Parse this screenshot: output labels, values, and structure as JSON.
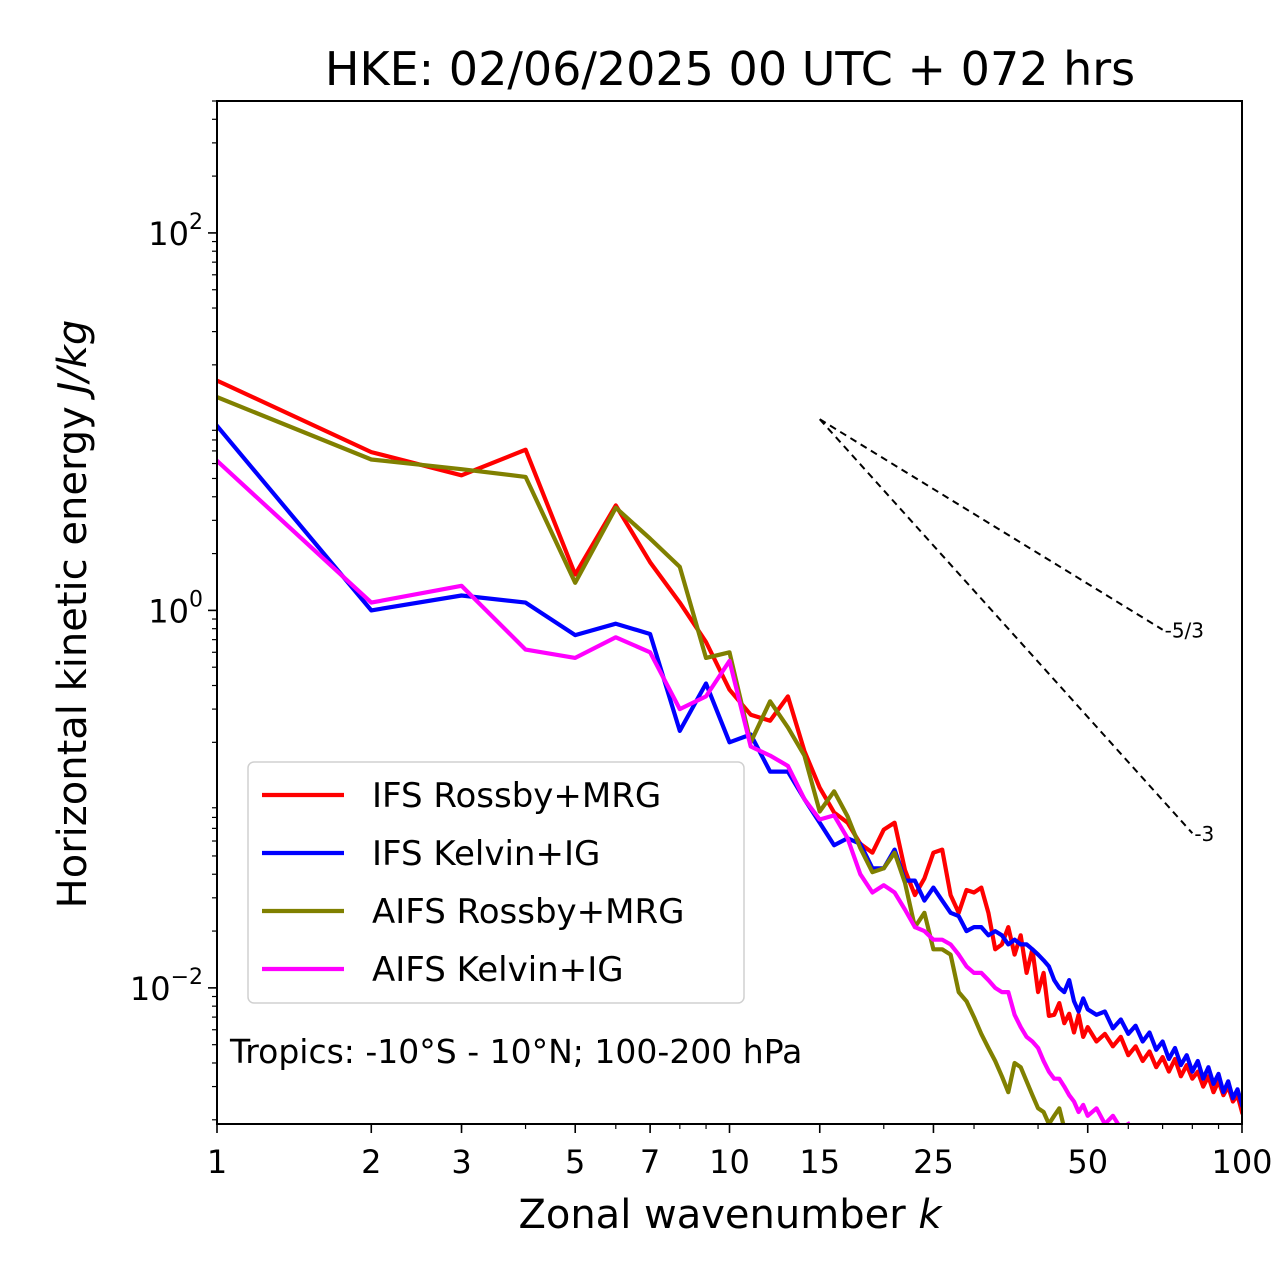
{
  "chart_data": {
    "type": "line",
    "title": "HKE: 02/06/2025 00 UTC + 072 hrs",
    "xlabel": "Zonal wavenumber ",
    "xlabel_var": "k",
    "ylabel": "Horizontal kinetic energy ",
    "ylabel_unit": "J/kg",
    "x_scale": "log",
    "y_scale": "log",
    "xlim": [
      1,
      100
    ],
    "ylim": [
      0.0019,
      500
    ],
    "x_ticks": [
      {
        "value": 1,
        "label": "1"
      },
      {
        "value": 2,
        "label": "2"
      },
      {
        "value": 3,
        "label": "3"
      },
      {
        "value": 5,
        "label": "5"
      },
      {
        "value": 7,
        "label": "7"
      },
      {
        "value": 10,
        "label": "10"
      },
      {
        "value": 15,
        "label": "15"
      },
      {
        "value": 25,
        "label": "25"
      },
      {
        "value": 50,
        "label": "50"
      },
      {
        "value": 100,
        "label": "100"
      }
    ],
    "y_ticks": [
      {
        "value": 100,
        "base": "10",
        "exp": "2"
      },
      {
        "value": 1,
        "base": "10",
        "exp": "0"
      },
      {
        "value": 0.01,
        "base": "10",
        "exp": "−2"
      }
    ],
    "legend_position": "lower-left",
    "annotation": "Tropics: -10°S - 10°N; 100-200 hPa",
    "reference_lines": [
      {
        "label": "-5/3",
        "x": [
          15,
          70
        ],
        "y": [
          10.3,
          0.79
        ]
      },
      {
        "label": "-3",
        "x": [
          15,
          80
        ],
        "y": [
          10.3,
          0.066
        ]
      }
    ],
    "series": [
      {
        "name": "IFS Rossby+MRG",
        "color": "#ff0000",
        "x": [
          1,
          2,
          3,
          4,
          5,
          6,
          7,
          8,
          9,
          10,
          11,
          12,
          13,
          14,
          15,
          16,
          17,
          18,
          19,
          20,
          21,
          22,
          23,
          24,
          25,
          26,
          27,
          28,
          29,
          30,
          31,
          32,
          33,
          34,
          35,
          36,
          37,
          38,
          39,
          40,
          41,
          42,
          43,
          44,
          45,
          46,
          47,
          48,
          49,
          50,
          52,
          54,
          56,
          58,
          60,
          62,
          64,
          66,
          68,
          70,
          72,
          74,
          76,
          78,
          80,
          82,
          84,
          86,
          88,
          90,
          92,
          94,
          96,
          98,
          100
        ],
        "y": [
          16.5,
          6.9,
          5.2,
          7.1,
          1.55,
          3.6,
          1.8,
          1.1,
          0.68,
          0.38,
          0.28,
          0.26,
          0.35,
          0.18,
          0.115,
          0.085,
          0.075,
          0.058,
          0.052,
          0.069,
          0.075,
          0.042,
          0.031,
          0.038,
          0.052,
          0.054,
          0.031,
          0.025,
          0.033,
          0.032,
          0.034,
          0.025,
          0.016,
          0.017,
          0.021,
          0.015,
          0.019,
          0.012,
          0.016,
          0.0095,
          0.012,
          0.0071,
          0.0072,
          0.0083,
          0.0065,
          0.0073,
          0.0058,
          0.0072,
          0.0055,
          0.0062,
          0.0052,
          0.0057,
          0.0049,
          0.0055,
          0.0044,
          0.0049,
          0.0041,
          0.0046,
          0.0038,
          0.0043,
          0.0036,
          0.0042,
          0.0034,
          0.0039,
          0.0033,
          0.0036,
          0.003,
          0.0034,
          0.0028,
          0.0032,
          0.0027,
          0.003,
          0.0025,
          0.0027,
          0.0022
        ]
      },
      {
        "name": "IFS Kelvin+IG",
        "color": "#0000ff",
        "x": [
          1,
          2,
          3,
          4,
          5,
          6,
          7,
          8,
          9,
          10,
          11,
          12,
          13,
          14,
          15,
          16,
          17,
          18,
          19,
          20,
          21,
          22,
          23,
          24,
          25,
          26,
          27,
          28,
          29,
          30,
          31,
          32,
          33,
          34,
          35,
          36,
          37,
          38,
          39,
          40,
          41,
          42,
          43,
          44,
          45,
          46,
          47,
          48,
          49,
          50,
          52,
          54,
          56,
          58,
          60,
          62,
          64,
          66,
          68,
          70,
          72,
          74,
          76,
          78,
          80,
          82,
          84,
          86,
          88,
          90,
          92,
          94,
          96,
          98,
          100
        ],
        "y": [
          9.5,
          1.0,
          1.2,
          1.1,
          0.74,
          0.85,
          0.75,
          0.23,
          0.41,
          0.2,
          0.22,
          0.14,
          0.14,
          0.1,
          0.075,
          0.057,
          0.062,
          0.058,
          0.043,
          0.043,
          0.054,
          0.037,
          0.037,
          0.029,
          0.034,
          0.029,
          0.025,
          0.024,
          0.02,
          0.021,
          0.021,
          0.019,
          0.02,
          0.019,
          0.017,
          0.018,
          0.017,
          0.017,
          0.016,
          0.015,
          0.014,
          0.013,
          0.011,
          0.01,
          0.0095,
          0.011,
          0.0085,
          0.0075,
          0.0088,
          0.0077,
          0.0072,
          0.0075,
          0.0061,
          0.0068,
          0.0057,
          0.0063,
          0.0052,
          0.0058,
          0.0047,
          0.0052,
          0.0042,
          0.0048,
          0.0039,
          0.0044,
          0.0036,
          0.0041,
          0.0033,
          0.0038,
          0.0031,
          0.0035,
          0.0028,
          0.0032,
          0.0026,
          0.0029,
          0.0024
        ]
      },
      {
        "name": "AIFS Rossby+MRG",
        "color": "#808000",
        "x": [
          1,
          2,
          3,
          4,
          5,
          6,
          7,
          8,
          9,
          10,
          11,
          12,
          13,
          14,
          15,
          16,
          17,
          18,
          19,
          20,
          21,
          22,
          23,
          24,
          25,
          26,
          27,
          28,
          29,
          30,
          31,
          32,
          33,
          34,
          35,
          36,
          37,
          38,
          39,
          40,
          41,
          42,
          43,
          44,
          45,
          46,
          47,
          48,
          49,
          50
        ],
        "y": [
          13.5,
          6.3,
          5.6,
          5.1,
          1.4,
          3.5,
          2.4,
          1.7,
          0.56,
          0.6,
          0.2,
          0.33,
          0.24,
          0.17,
          0.086,
          0.11,
          0.081,
          0.055,
          0.041,
          0.043,
          0.052,
          0.036,
          0.021,
          0.025,
          0.016,
          0.016,
          0.015,
          0.0095,
          0.0085,
          0.007,
          0.0057,
          0.0048,
          0.0041,
          0.0034,
          0.0028,
          0.004,
          0.0038,
          0.0032,
          0.0027,
          0.0023,
          0.0022,
          0.0019,
          0.0021,
          0.0023,
          0.0018,
          0.0016,
          0.0017,
          0.0015,
          0.0014,
          0.0012
        ]
      },
      {
        "name": "AIFS Kelvin+IG",
        "color": "#ff00ff",
        "x": [
          1,
          2,
          3,
          4,
          5,
          6,
          7,
          8,
          9,
          10,
          11,
          12,
          13,
          14,
          15,
          16,
          17,
          18,
          19,
          20,
          21,
          22,
          23,
          24,
          25,
          26,
          27,
          28,
          29,
          30,
          31,
          32,
          33,
          34,
          35,
          36,
          37,
          38,
          39,
          40,
          41,
          42,
          43,
          44,
          45,
          46,
          47,
          48,
          49,
          50,
          52,
          54,
          56,
          58,
          60
        ],
        "y": [
          6.2,
          1.1,
          1.35,
          0.62,
          0.56,
          0.72,
          0.6,
          0.3,
          0.35,
          0.54,
          0.19,
          0.17,
          0.15,
          0.1,
          0.078,
          0.082,
          0.062,
          0.04,
          0.032,
          0.035,
          0.032,
          0.026,
          0.021,
          0.02,
          0.018,
          0.018,
          0.017,
          0.015,
          0.013,
          0.012,
          0.012,
          0.011,
          0.01,
          0.0095,
          0.0095,
          0.0072,
          0.0062,
          0.0055,
          0.0052,
          0.0048,
          0.0041,
          0.0036,
          0.0033,
          0.0033,
          0.003,
          0.0027,
          0.0025,
          0.0022,
          0.0024,
          0.0021,
          0.0023,
          0.0019,
          0.0021,
          0.0018,
          0.0019
        ]
      }
    ]
  }
}
